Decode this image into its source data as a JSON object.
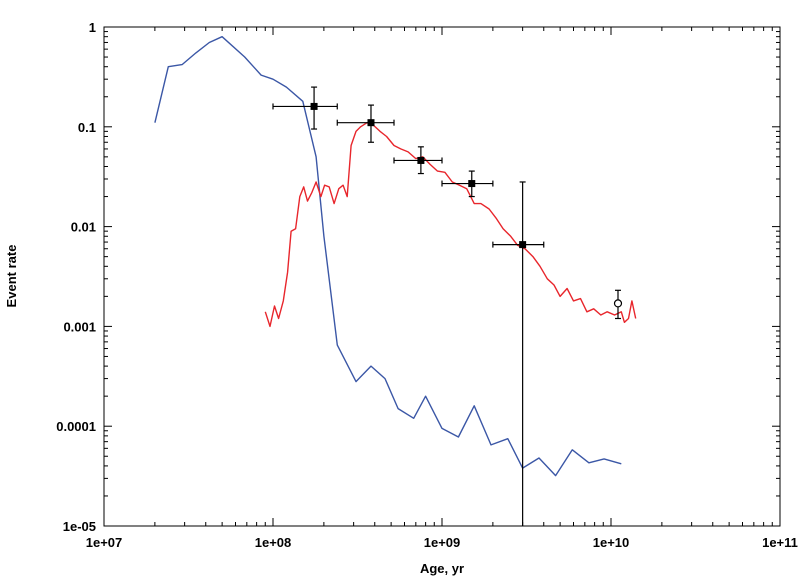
{
  "chart_data": {
    "type": "line",
    "xscale": "log",
    "yscale": "log",
    "xlim": [
      10000000.0,
      100000000000.0
    ],
    "ylim": [
      1e-05,
      1
    ],
    "xlabel": "Age, yr",
    "ylabel": "Event rate",
    "grid": false,
    "x_ticks": [
      "1e+07",
      "1e+08",
      "1e+09",
      "1e+10",
      "1e+11"
    ],
    "y_ticks": [
      "1e-05",
      "0.0001",
      "0.001",
      "0.01",
      "0.1",
      "1"
    ],
    "series": [
      {
        "color": "#3b57a6",
        "kind": "line",
        "points": [
          [
            20000000.0,
            0.11
          ],
          [
            24000000.0,
            0.4
          ],
          [
            29000000.0,
            0.42
          ],
          [
            35000000.0,
            0.55
          ],
          [
            42000000.0,
            0.7
          ],
          [
            50000000.0,
            0.8
          ],
          [
            68000000.0,
            0.5
          ],
          [
            85000000.0,
            0.33
          ],
          [
            100000000.0,
            0.3
          ],
          [
            120000000.0,
            0.25
          ],
          [
            150000000.0,
            0.18
          ],
          [
            180000000.0,
            0.05
          ],
          [
            200000000.0,
            0.008
          ],
          [
            240000000.0,
            0.00065
          ],
          [
            310000000.0,
            0.00028
          ],
          [
            380000000.0,
            0.0004
          ],
          [
            460000000.0,
            0.0003
          ],
          [
            550000000.0,
            0.00015
          ],
          [
            680000000.0,
            0.00012
          ],
          [
            800000000.0,
            0.0002
          ],
          [
            1000000000.0,
            9.5e-05
          ],
          [
            1250000000.0,
            7.8e-05
          ],
          [
            1550000000.0,
            0.00016
          ],
          [
            1950000000.0,
            6.5e-05
          ],
          [
            2450000000.0,
            7.5e-05
          ],
          [
            3000000000.0,
            3.8e-05
          ],
          [
            3750000000.0,
            4.8e-05
          ],
          [
            4700000000.0,
            3.2e-05
          ],
          [
            5900000000.0,
            5.8e-05
          ],
          [
            7400000000.0,
            4.3e-05
          ],
          [
            9100000000.0,
            4.7e-05
          ],
          [
            11500000000.0,
            4.2e-05
          ]
        ]
      },
      {
        "color": "#e8262c",
        "kind": "line",
        "points": [
          [
            90000000.0,
            0.0014
          ],
          [
            96000000.0,
            0.001
          ],
          [
            102000000.0,
            0.0016
          ],
          [
            108000000.0,
            0.0012
          ],
          [
            115000000.0,
            0.0018
          ],
          [
            122000000.0,
            0.0035
          ],
          [
            128000000.0,
            0.009
          ],
          [
            136000000.0,
            0.0095
          ],
          [
            144000000.0,
            0.02
          ],
          [
            152000000.0,
            0.025
          ],
          [
            160000000.0,
            0.018
          ],
          [
            170000000.0,
            0.022
          ],
          [
            180000000.0,
            0.028
          ],
          [
            192000000.0,
            0.02
          ],
          [
            202000000.0,
            0.026
          ],
          [
            215000000.0,
            0.025
          ],
          [
            230000000.0,
            0.017
          ],
          [
            245000000.0,
            0.024
          ],
          [
            260000000.0,
            0.026
          ],
          [
            275000000.0,
            0.02
          ],
          [
            290000000.0,
            0.065
          ],
          [
            310000000.0,
            0.09
          ],
          [
            330000000.0,
            0.1
          ],
          [
            360000000.0,
            0.11
          ],
          [
            390000000.0,
            0.105
          ],
          [
            430000000.0,
            0.09
          ],
          [
            470000000.0,
            0.08
          ],
          [
            520000000.0,
            0.065
          ],
          [
            570000000.0,
            0.06
          ],
          [
            630000000.0,
            0.056
          ],
          [
            700000000.0,
            0.048
          ],
          [
            770000000.0,
            0.05
          ],
          [
            850000000.0,
            0.042
          ],
          [
            940000000.0,
            0.036
          ],
          [
            1040000000.0,
            0.035
          ],
          [
            1150000000.0,
            0.028
          ],
          [
            1270000000.0,
            0.026
          ],
          [
            1400000000.0,
            0.024
          ],
          [
            1550000000.0,
            0.017
          ],
          [
            1700000000.0,
            0.017
          ],
          [
            1900000000.0,
            0.015
          ],
          [
            2100000000.0,
            0.012
          ],
          [
            2300000000.0,
            0.0095
          ],
          [
            2550000000.0,
            0.008
          ],
          [
            2800000000.0,
            0.0065
          ],
          [
            3100000000.0,
            0.006
          ],
          [
            3450000000.0,
            0.005
          ],
          [
            3800000000.0,
            0.004
          ],
          [
            4200000000.0,
            0.003
          ],
          [
            4600000000.0,
            0.0026
          ],
          [
            5000000000.0,
            0.002
          ],
          [
            5500000000.0,
            0.0024
          ],
          [
            6000000000.0,
            0.0018
          ],
          [
            6600000000.0,
            0.0019
          ],
          [
            7200000000.0,
            0.0014
          ],
          [
            7900000000.0,
            0.0015
          ],
          [
            8700000000.0,
            0.0013
          ],
          [
            9500000000.0,
            0.0014
          ],
          [
            10500000000.0,
            0.0013
          ],
          [
            11500000000.0,
            0.0014
          ],
          [
            12000000000.0,
            0.0011
          ],
          [
            12700000000.0,
            0.0012
          ],
          [
            13300000000.0,
            0.0018
          ],
          [
            14000000000.0,
            0.0012
          ]
        ]
      },
      {
        "color": "#000000",
        "kind": "errorbar",
        "marker": "filled-square",
        "points": [
          {
            "x": 175000000.0,
            "y": 0.16,
            "x_lo": 100000000.0,
            "x_hi": 240000000.0,
            "y_lo": 0.095,
            "y_hi": 0.25
          },
          {
            "x": 380000000.0,
            "y": 0.11,
            "x_lo": 240000000.0,
            "x_hi": 520000000.0,
            "y_lo": 0.07,
            "y_hi": 0.165
          },
          {
            "x": 750000000.0,
            "y": 0.046,
            "x_lo": 520000000.0,
            "x_hi": 1000000000.0,
            "y_lo": 0.034,
            "y_hi": 0.063
          },
          {
            "x": 1500000000.0,
            "y": 0.027,
            "x_lo": 1000000000.0,
            "x_hi": 2000000000.0,
            "y_lo": 0.02,
            "y_hi": 0.036
          },
          {
            "x": 3000000000.0,
            "y": 0.0066,
            "x_lo": 2000000000.0,
            "x_hi": 4000000000.0,
            "y_lo": 1e-05,
            "y_hi": 0.028
          }
        ]
      },
      {
        "color": "#000000",
        "kind": "errorbar",
        "marker": "open-circle",
        "points": [
          {
            "x": 11000000000.0,
            "y": 0.0017,
            "y_lo": 0.0012,
            "y_hi": 0.0023
          }
        ]
      }
    ]
  }
}
